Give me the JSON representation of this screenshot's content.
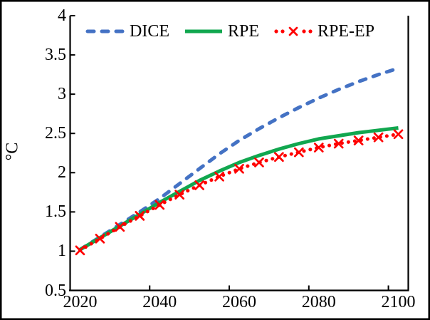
{
  "figure": {
    "background_color": "#ffffff",
    "frame_color": "#000000",
    "axis_color": "#000000",
    "ylabel": "°C"
  },
  "chart_data": {
    "type": "line",
    "title": "",
    "xlabel": "",
    "ylabel": "°C",
    "xlim": [
      2020,
      2100
    ],
    "ylim": [
      0.5,
      4
    ],
    "xticks": [
      2020,
      2040,
      2060,
      2080,
      2100
    ],
    "yticks": [
      0.5,
      1,
      1.5,
      2,
      2.5,
      3,
      3.5,
      4
    ],
    "grid": false,
    "legend_position": "top-inside",
    "x": [
      2020,
      2025,
      2030,
      2035,
      2040,
      2045,
      2050,
      2055,
      2060,
      2065,
      2070,
      2075,
      2080,
      2085,
      2090,
      2095,
      2100
    ],
    "series": [
      {
        "name": "DICE",
        "color": "#4472C4",
        "style": "dashed",
        "marker": "none",
        "values": [
          1.02,
          1.18,
          1.34,
          1.5,
          1.67,
          1.86,
          2.05,
          2.24,
          2.41,
          2.56,
          2.7,
          2.83,
          2.95,
          3.06,
          3.16,
          3.25,
          3.33
        ]
      },
      {
        "name": "RPE",
        "color": "#11A74F",
        "style": "solid",
        "marker": "none",
        "values": [
          1.02,
          1.17,
          1.32,
          1.47,
          1.62,
          1.76,
          1.9,
          2.02,
          2.13,
          2.22,
          2.3,
          2.37,
          2.43,
          2.47,
          2.51,
          2.54,
          2.57
        ]
      },
      {
        "name": "RPE-EP",
        "color": "#FF0000",
        "style": "dotted",
        "marker": "x",
        "values": [
          1.01,
          1.16,
          1.31,
          1.45,
          1.59,
          1.72,
          1.84,
          1.95,
          2.05,
          2.13,
          2.2,
          2.26,
          2.32,
          2.37,
          2.41,
          2.45,
          2.49
        ]
      }
    ]
  }
}
